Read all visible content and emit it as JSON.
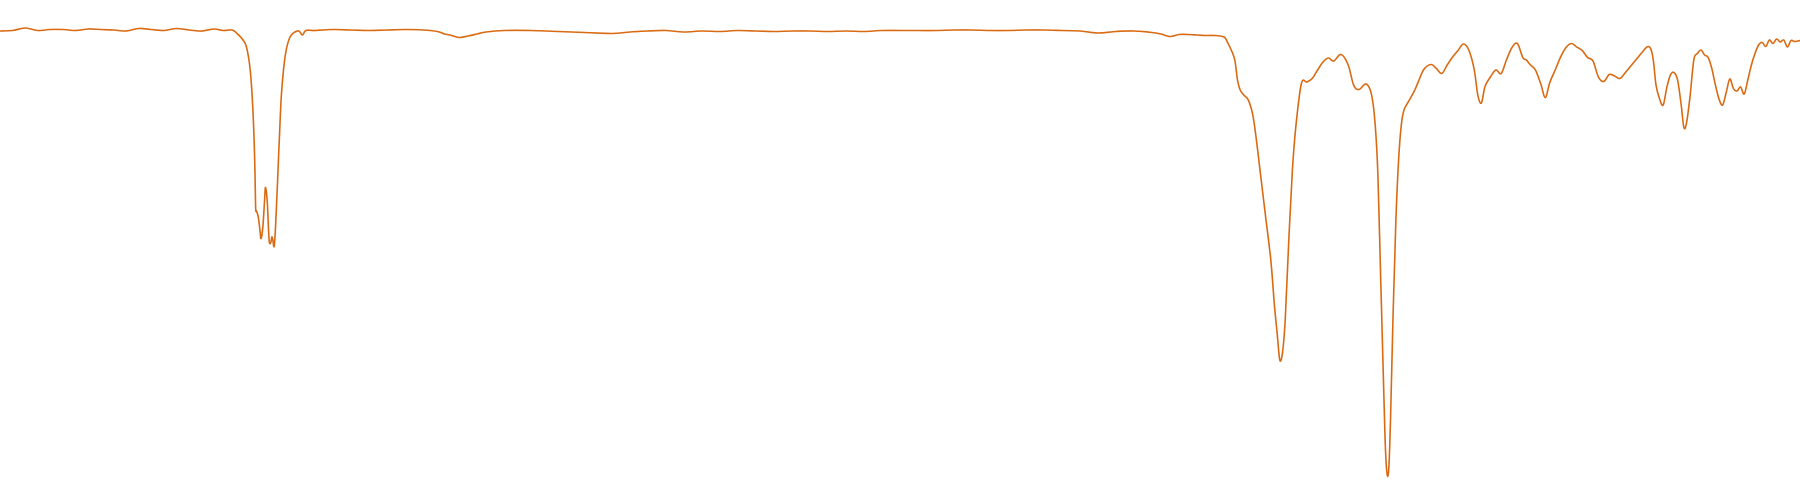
{
  "chart_data": {
    "type": "line",
    "title": "",
    "xlabel": "",
    "ylabel": "",
    "xlim": [
      0,
      100
    ],
    "ylim": [
      0,
      100
    ],
    "grid": false,
    "axes_visible": false,
    "series": [
      {
        "color": "#D96A12",
        "points": [
          [
            0,
            93.8
          ],
          [
            0.7,
            93.9
          ],
          [
            1.4,
            94.4
          ],
          [
            2.1,
            93.9
          ],
          [
            2.8,
            94.1
          ],
          [
            3.5,
            94.1
          ],
          [
            4.2,
            93.9
          ],
          [
            4.9,
            94.2
          ],
          [
            5.6,
            94.1
          ],
          [
            6.3,
            94.0
          ],
          [
            7.0,
            93.8
          ],
          [
            7.7,
            94.3
          ],
          [
            8.4,
            94.1
          ],
          [
            9.1,
            93.9
          ],
          [
            9.8,
            94.3
          ],
          [
            10.5,
            94.0
          ],
          [
            11.2,
            93.8
          ],
          [
            11.9,
            94.2
          ],
          [
            12.4,
            93.9
          ],
          [
            12.9,
            94.0
          ],
          [
            13.2,
            93.2
          ],
          [
            13.5,
            92.0
          ],
          [
            13.7,
            90.5
          ],
          [
            13.9,
            86.0
          ],
          [
            14.05,
            78.0
          ],
          [
            14.15,
            68.0
          ],
          [
            14.2,
            58.7
          ],
          [
            14.25,
            57.8
          ],
          [
            14.35,
            56.6
          ],
          [
            14.45,
            53.7
          ],
          [
            14.5,
            52.3
          ],
          [
            14.6,
            54.5
          ],
          [
            14.7,
            60.0
          ],
          [
            14.75,
            62.5
          ],
          [
            14.85,
            59.5
          ],
          [
            14.95,
            52.0
          ],
          [
            15.05,
            51.6
          ],
          [
            15.1,
            52.6
          ],
          [
            15.15,
            52.2
          ],
          [
            15.25,
            51.2
          ],
          [
            15.4,
            62.0
          ],
          [
            15.6,
            79.0
          ],
          [
            15.75,
            86.0
          ],
          [
            15.9,
            90.0
          ],
          [
            16.1,
            92.5
          ],
          [
            16.3,
            93.4
          ],
          [
            16.6,
            93.8
          ],
          [
            16.8,
            93.0
          ],
          [
            17.0,
            93.9
          ],
          [
            17.5,
            93.9
          ],
          [
            18.5,
            94.1
          ],
          [
            19.5,
            94.0
          ],
          [
            20.5,
            93.9
          ],
          [
            21.5,
            94.0
          ],
          [
            22.5,
            94.1
          ],
          [
            23.5,
            94.0
          ],
          [
            24.3,
            93.7
          ],
          [
            24.7,
            93.2
          ],
          [
            25.0,
            93.0
          ],
          [
            25.5,
            92.5
          ],
          [
            26.0,
            92.8
          ],
          [
            26.5,
            93.2
          ],
          [
            27.0,
            93.6
          ],
          [
            28.0,
            93.9
          ],
          [
            29.5,
            93.9
          ],
          [
            31.0,
            93.7
          ],
          [
            32.5,
            93.5
          ],
          [
            34.0,
            93.3
          ],
          [
            35.0,
            93.6
          ],
          [
            36.0,
            93.8
          ],
          [
            37.0,
            93.9
          ],
          [
            38.0,
            93.6
          ],
          [
            39.0,
            93.8
          ],
          [
            40.0,
            93.7
          ],
          [
            41.0,
            93.9
          ],
          [
            42.0,
            93.8
          ],
          [
            43.0,
            93.7
          ],
          [
            44.0,
            93.8
          ],
          [
            45.0,
            93.8
          ],
          [
            46.0,
            93.7
          ],
          [
            47.0,
            93.8
          ],
          [
            48.0,
            93.7
          ],
          [
            49.0,
            93.9
          ],
          [
            50.0,
            93.9
          ],
          [
            51.0,
            93.9
          ],
          [
            52.0,
            93.9
          ],
          [
            53.0,
            94.0
          ],
          [
            54.0,
            94.0
          ],
          [
            55.0,
            93.9
          ],
          [
            56.0,
            93.9
          ],
          [
            57.0,
            94.0
          ],
          [
            58.0,
            94.0
          ],
          [
            59.0,
            93.9
          ],
          [
            60.0,
            93.8
          ],
          [
            61.0,
            93.4
          ],
          [
            62.0,
            93.7
          ],
          [
            63.0,
            93.8
          ],
          [
            64.0,
            93.5
          ],
          [
            64.5,
            93.2
          ],
          [
            65.0,
            92.7
          ],
          [
            65.5,
            93.1
          ],
          [
            66.0,
            93.1
          ],
          [
            66.5,
            93.0
          ],
          [
            67.0,
            92.9
          ],
          [
            67.5,
            92.9
          ],
          [
            68.0,
            92.6
          ],
          [
            68.2,
            91.5
          ],
          [
            68.4,
            90.0
          ],
          [
            68.6,
            88.0
          ],
          [
            68.75,
            84.0
          ],
          [
            68.9,
            82.0
          ],
          [
            69.1,
            81.0
          ],
          [
            69.35,
            80.0
          ],
          [
            69.6,
            77.0
          ],
          [
            69.8,
            72.0
          ],
          [
            70.0,
            66.0
          ],
          [
            70.3,
            57.0
          ],
          [
            70.6,
            48.0
          ],
          [
            70.8,
            39.0
          ],
          [
            70.95,
            33.5
          ],
          [
            71.1,
            28.0
          ],
          [
            71.25,
            29.5
          ],
          [
            71.4,
            36.0
          ],
          [
            71.6,
            52.0
          ],
          [
            71.8,
            66.0
          ],
          [
            72.0,
            75.0
          ],
          [
            72.3,
            83.3
          ],
          [
            72.6,
            83.6
          ],
          [
            72.9,
            84.3
          ],
          [
            73.2,
            86.0
          ],
          [
            73.5,
            87.6
          ],
          [
            73.8,
            88.4
          ],
          [
            74.1,
            87.8
          ],
          [
            74.5,
            89.1
          ],
          [
            74.9,
            87.0
          ],
          [
            75.2,
            83.0
          ],
          [
            75.5,
            82.1
          ],
          [
            75.9,
            83.2
          ],
          [
            76.2,
            81.0
          ],
          [
            76.4,
            75.0
          ],
          [
            76.55,
            65.0
          ],
          [
            76.7,
            45.0
          ],
          [
            76.85,
            25.0
          ],
          [
            76.95,
            12.0
          ],
          [
            77.05,
            5.5
          ],
          [
            77.15,
            6.0
          ],
          [
            77.25,
            16.0
          ],
          [
            77.4,
            38.0
          ],
          [
            77.55,
            56.0
          ],
          [
            77.7,
            68.0
          ],
          [
            77.85,
            75.0
          ],
          [
            78.0,
            78.0
          ],
          [
            78.3,
            80.0
          ],
          [
            78.6,
            82.0
          ],
          [
            78.8,
            83.7
          ],
          [
            79.1,
            86.1
          ],
          [
            79.5,
            87.1
          ],
          [
            79.8,
            86.3
          ],
          [
            80.1,
            85.3
          ],
          [
            80.4,
            87.0
          ],
          [
            80.7,
            88.6
          ],
          [
            81.0,
            89.9
          ],
          [
            81.3,
            91.2
          ],
          [
            81.6,
            90.0
          ],
          [
            81.9,
            86.1
          ],
          [
            82.1,
            81.0
          ],
          [
            82.3,
            79.4
          ],
          [
            82.5,
            82.7
          ],
          [
            82.8,
            84.6
          ],
          [
            83.1,
            86.0
          ],
          [
            83.4,
            85.3
          ],
          [
            83.7,
            88.1
          ],
          [
            84.0,
            90.5
          ],
          [
            84.3,
            91.3
          ],
          [
            84.6,
            88.5
          ],
          [
            84.8,
            88.0
          ],
          [
            85.0,
            87.1
          ],
          [
            85.3,
            86.0
          ],
          [
            85.6,
            83.2
          ],
          [
            85.85,
            80.5
          ],
          [
            86.1,
            83.5
          ],
          [
            86.4,
            86.0
          ],
          [
            86.7,
            88.6
          ],
          [
            87.0,
            90.5
          ],
          [
            87.3,
            91.3
          ],
          [
            87.6,
            90.6
          ],
          [
            87.9,
            89.9
          ],
          [
            88.2,
            88.5
          ],
          [
            88.5,
            87.8
          ],
          [
            88.8,
            84.6
          ],
          [
            89.1,
            83.7
          ],
          [
            89.4,
            85.1
          ],
          [
            89.7,
            84.8
          ],
          [
            90.0,
            84.3
          ],
          [
            90.3,
            85.5
          ],
          [
            90.6,
            86.8
          ],
          [
            90.9,
            88.1
          ],
          [
            91.2,
            89.4
          ],
          [
            91.5,
            90.6
          ],
          [
            91.7,
            90.3
          ],
          [
            91.85,
            88.0
          ],
          [
            92.0,
            83.0
          ],
          [
            92.2,
            80.2
          ],
          [
            92.4,
            79.0
          ],
          [
            92.6,
            82.5
          ],
          [
            92.8,
            85.0
          ],
          [
            93.0,
            85.5
          ],
          [
            93.2,
            84.0
          ],
          [
            93.4,
            79.0
          ],
          [
            93.55,
            74.5
          ],
          [
            93.7,
            75.5
          ],
          [
            93.9,
            81.0
          ],
          [
            94.1,
            88.0
          ],
          [
            94.3,
            89.3
          ],
          [
            94.5,
            90.0
          ],
          [
            94.7,
            89.0
          ],
          [
            94.9,
            88.5
          ],
          [
            95.1,
            86.3
          ],
          [
            95.3,
            83.0
          ],
          [
            95.5,
            80.2
          ],
          [
            95.7,
            79.0
          ],
          [
            95.9,
            81.5
          ],
          [
            96.1,
            84.2
          ],
          [
            96.3,
            82.3
          ],
          [
            96.5,
            81.8
          ],
          [
            96.7,
            82.6
          ],
          [
            96.9,
            81.2
          ],
          [
            97.1,
            84.0
          ],
          [
            97.3,
            87.0
          ],
          [
            97.5,
            89.3
          ],
          [
            97.7,
            91.0
          ],
          [
            97.9,
            91.5
          ],
          [
            98.1,
            90.7
          ],
          [
            98.3,
            92.0
          ],
          [
            98.5,
            91.3
          ],
          [
            98.7,
            92.2
          ],
          [
            98.9,
            91.6
          ],
          [
            99.1,
            92.0
          ],
          [
            99.3,
            90.6
          ],
          [
            99.5,
            91.9
          ],
          [
            99.7,
            91.7
          ],
          [
            100,
            91.9
          ]
        ]
      }
    ]
  }
}
